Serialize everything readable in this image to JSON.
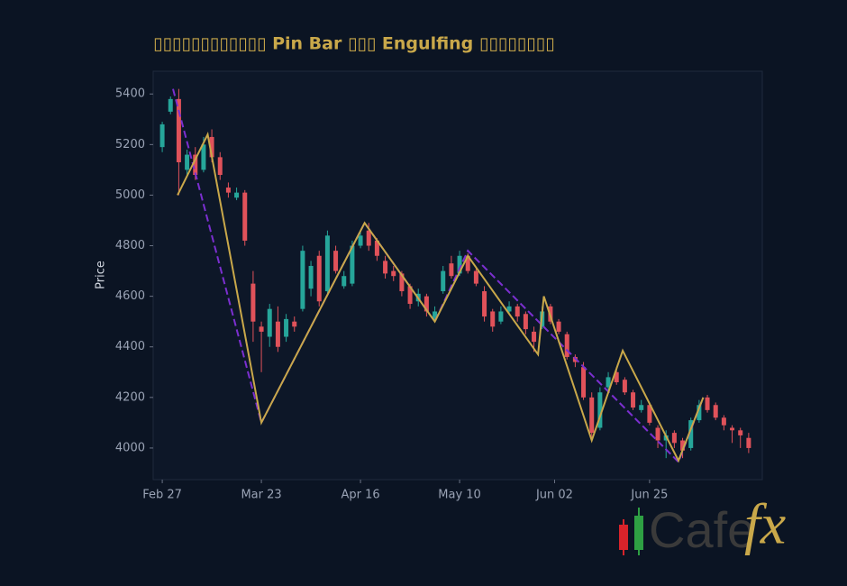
{
  "chart_data": {
    "type": "candlestick",
    "title": "▯▯▯▯▯▯▯▯▯▯▯▯ Pin Bar ▯▯▯ Engulfing ▯▯▯▯▯▯▯▯",
    "ylabel": "Price",
    "xlim": [
      -2.2,
      145.3
    ],
    "ylim": [
      3875,
      5490
    ],
    "xticks": [
      {
        "value": 0,
        "label": "Feb 27"
      },
      {
        "value": 24,
        "label": "Mar 23"
      },
      {
        "value": 48,
        "label": "Apr 16"
      },
      {
        "value": 72,
        "label": "May 10"
      },
      {
        "value": 95,
        "label": "Jun 02"
      },
      {
        "value": 118,
        "label": "Jun 25"
      }
    ],
    "yticks": [
      4000,
      4200,
      4400,
      4600,
      4800,
      5000,
      5200,
      5400
    ],
    "up_color": "#26a69a",
    "down_color": "#e0525a",
    "x": [
      0,
      2,
      4,
      6,
      8,
      10,
      12,
      14,
      16,
      18,
      20,
      22,
      24,
      26,
      28,
      30,
      32,
      34,
      36,
      38,
      40,
      42,
      44,
      46,
      48,
      50,
      52,
      54,
      56,
      58,
      60,
      62,
      64,
      66,
      68,
      70,
      72,
      74,
      76,
      78,
      80,
      82,
      84,
      86,
      88,
      90,
      92,
      94,
      96,
      98,
      100,
      102,
      104,
      106,
      108,
      110,
      112,
      114,
      116,
      118,
      120,
      122,
      124,
      126,
      128,
      130,
      132,
      134,
      136,
      138,
      140,
      142
    ],
    "open": [
      5190,
      5330,
      5380,
      5100,
      5160,
      5100,
      5230,
      5150,
      5030,
      4990,
      5010,
      4650,
      4480,
      4440,
      4500,
      4440,
      4500,
      4550,
      4630,
      4760,
      4620,
      4780,
      4640,
      4650,
      4800,
      4860,
      4820,
      4740,
      4700,
      4690,
      4640,
      4580,
      4600,
      4510,
      4620,
      4730,
      4690,
      4760,
      4700,
      4620,
      4540,
      4500,
      4540,
      4560,
      4530,
      4460,
      4480,
      4560,
      4500,
      4450,
      4360,
      4320,
      4200,
      4080,
      4240,
      4300,
      4270,
      4220,
      4150,
      4170,
      4080,
      4030,
      4060,
      4030,
      4000,
      4110,
      4200,
      4170,
      4120,
      4080,
      4070,
      4040
    ],
    "high": [
      5290,
      5390,
      5420,
      5180,
      5190,
      5230,
      5260,
      5170,
      5050,
      5030,
      5020,
      4700,
      4500,
      4570,
      4560,
      4530,
      4520,
      4800,
      4740,
      4780,
      4860,
      4800,
      4700,
      4820,
      4860,
      4890,
      4830,
      4760,
      4720,
      4700,
      4650,
      4630,
      4610,
      4560,
      4720,
      4760,
      4780,
      4770,
      4710,
      4640,
      4550,
      4560,
      4580,
      4570,
      4540,
      4480,
      4560,
      4570,
      4510,
      4460,
      4370,
      4340,
      4220,
      4240,
      4300,
      4320,
      4280,
      4230,
      4190,
      4180,
      4090,
      4070,
      4070,
      4040,
      4120,
      4190,
      4210,
      4180,
      4130,
      4090,
      4080,
      4060
    ],
    "low": [
      5170,
      5320,
      5000,
      5080,
      5060,
      5090,
      5130,
      5060,
      4990,
      4980,
      4800,
      4420,
      4300,
      4400,
      4380,
      4420,
      4460,
      4540,
      4600,
      4560,
      4610,
      4690,
      4630,
      4640,
      4790,
      4780,
      4740,
      4670,
      4660,
      4600,
      4550,
      4560,
      4520,
      4500,
      4610,
      4670,
      4680,
      4690,
      4640,
      4500,
      4460,
      4490,
      4530,
      4500,
      4450,
      4380,
      4470,
      4490,
      4450,
      4350,
      4320,
      4190,
      4040,
      4070,
      4230,
      4250,
      4210,
      4150,
      4140,
      4090,
      4000,
      3960,
      4000,
      3960,
      3990,
      4100,
      4140,
      4110,
      4070,
      4020,
      4000,
      3980
    ],
    "close": [
      5280,
      5380,
      5130,
      5160,
      5080,
      5200,
      5150,
      5080,
      5010,
      5010,
      4820,
      4500,
      4460,
      4550,
      4400,
      4510,
      4480,
      4780,
      4720,
      4580,
      4840,
      4700,
      4680,
      4800,
      4840,
      4800,
      4760,
      4690,
      4680,
      4620,
      4570,
      4610,
      4540,
      4540,
      4700,
      4680,
      4760,
      4700,
      4650,
      4520,
      4480,
      4540,
      4560,
      4520,
      4470,
      4420,
      4540,
      4500,
      4460,
      4360,
      4340,
      4200,
      4060,
      4220,
      4280,
      4260,
      4220,
      4160,
      4170,
      4100,
      4030,
      4050,
      4020,
      3990,
      4110,
      4170,
      4150,
      4120,
      4090,
      4070,
      4050,
      4000
    ],
    "lines": [
      {
        "color": "#7b2fd0",
        "dashed": true,
        "x": [
          2.6,
          24,
          49,
          66,
          74,
          125,
          131
        ],
        "y": [
          5420,
          4100,
          4890,
          4500,
          4780,
          3945,
          4200
        ]
      },
      {
        "color": "#c9a84a",
        "dashed": false,
        "x": [
          3.7,
          11,
          24,
          49,
          66,
          74,
          91,
          92.4,
          104,
          111.5,
          125,
          131
        ],
        "y": [
          5000,
          5240,
          4100,
          4890,
          4500,
          4760,
          4370,
          4600,
          4030,
          4385,
          3950,
          4200
        ]
      }
    ]
  },
  "logo": {
    "text": "Cafe",
    "accent": "fx"
  }
}
